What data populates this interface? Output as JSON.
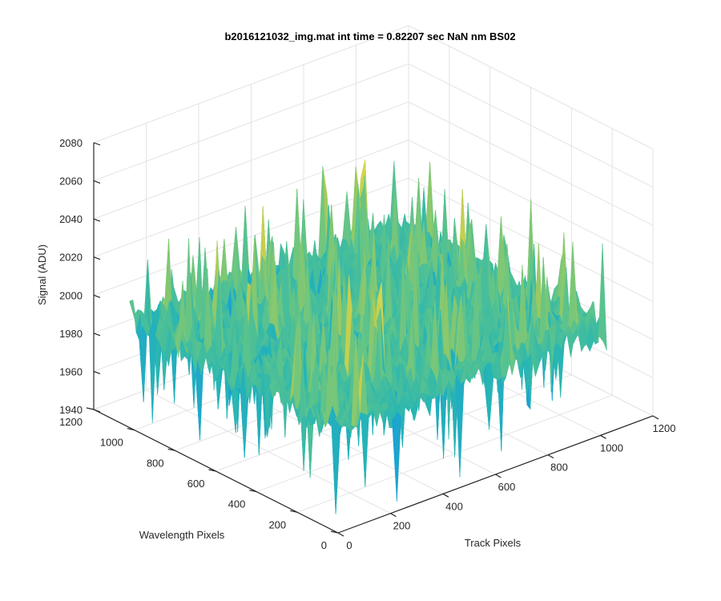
{
  "chart_data": {
    "type": "surface",
    "title": "b2016121032_img.mat int time = 0.82207 sec  NaN nm BS02",
    "xlabel": "Track Pixels",
    "ylabel": "Wavelength Pixels",
    "zlabel": "Signal (ADU)",
    "xlim": [
      0,
      1200
    ],
    "ylim": [
      0,
      1200
    ],
    "zlim": [
      1940,
      2080
    ],
    "x_ticks": [
      "0",
      "200",
      "400",
      "600",
      "800",
      "1000",
      "1200"
    ],
    "y_ticks": [
      "0",
      "200",
      "400",
      "600",
      "800",
      "1000",
      "1200"
    ],
    "z_ticks": [
      "1940",
      "1960",
      "1980",
      "2000",
      "2020",
      "2040",
      "2060",
      "2080"
    ],
    "x_extent": [
      0,
      1024
    ],
    "y_extent": [
      0,
      1024
    ],
    "signal_mean": 1995,
    "signal_range": [
      1945,
      2070
    ],
    "grid": true,
    "colormap": [
      "#0072bd",
      "#1a9fd6",
      "#26b5b5",
      "#5ec48a",
      "#b8cc50",
      "#e8d84a"
    ]
  }
}
